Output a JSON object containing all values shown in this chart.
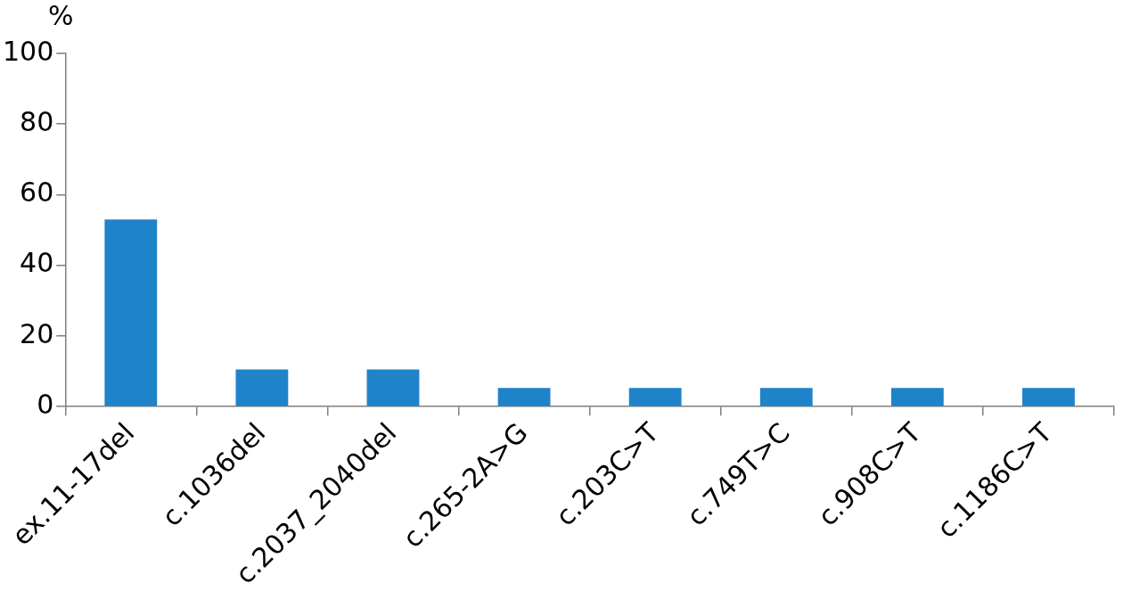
{
  "chart_data": {
    "type": "bar",
    "ylabel": "%",
    "categories": [
      "ex.11-17del",
      "c.1036del",
      "c.2037_2040del",
      "c.265-2A>G",
      "c.203C>T",
      "c.749T>C",
      "c.908C>T",
      "c.1186C>T"
    ],
    "values": [
      53,
      10.5,
      10.5,
      5.3,
      5.3,
      5.3,
      5.3,
      5.3
    ],
    "color": "#1f83c9",
    "ylim": [
      0,
      100
    ],
    "yticks": [
      0,
      20,
      40,
      60,
      80,
      100
    ],
    "grid": false,
    "legend": false
  }
}
